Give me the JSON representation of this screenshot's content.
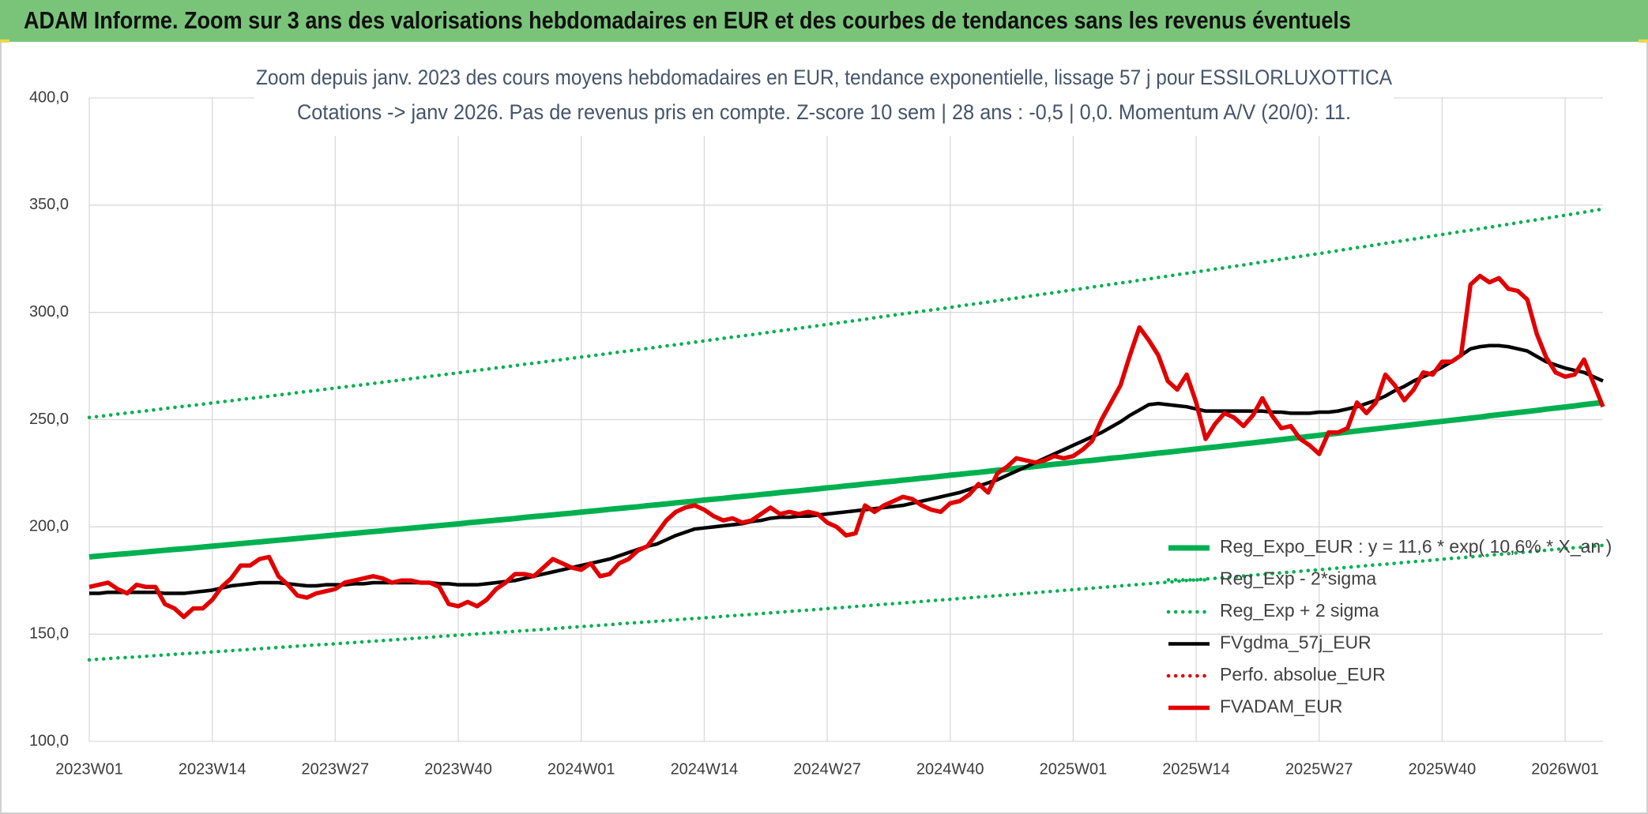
{
  "header": {
    "title": "ADAM Informe. Zoom sur 3 ans des valorisations hebdomadaires en EUR et des courbes de tendances sans les revenus éventuels"
  },
  "chart_data": {
    "type": "line",
    "title": "Zoom depuis janv. 2023 des cours moyens hebdomadaires en EUR, tendance exponentielle, lissage 57 j pour ESSILORLUXOTTICA",
    "subtitle": "Cotations -> janv 2026. Pas de revenus pris en compte. Z-score 10 sem | 28 ans : -0,5 | 0,0. Momentum A/V (20/0): 11.",
    "categories": [
      "2023W01",
      null,
      null,
      null,
      null,
      null,
      null,
      null,
      null,
      null,
      null,
      null,
      null,
      "2023W14",
      null,
      null,
      null,
      null,
      null,
      null,
      null,
      null,
      null,
      null,
      null,
      null,
      "2023W27",
      null,
      null,
      null,
      null,
      null,
      null,
      null,
      null,
      null,
      null,
      null,
      null,
      "2023W40",
      null,
      null,
      null,
      null,
      null,
      null,
      null,
      null,
      null,
      null,
      null,
      null,
      "2024W01",
      null,
      null,
      null,
      null,
      null,
      null,
      null,
      null,
      null,
      null,
      null,
      null,
      "2024W14",
      null,
      null,
      null,
      null,
      null,
      null,
      null,
      null,
      null,
      null,
      null,
      null,
      "2024W27",
      null,
      null,
      null,
      null,
      null,
      null,
      null,
      null,
      null,
      null,
      null,
      null,
      "2024W40",
      null,
      null,
      null,
      null,
      null,
      null,
      null,
      null,
      null,
      null,
      null,
      null,
      "2025W01",
      null,
      null,
      null,
      null,
      null,
      null,
      null,
      null,
      null,
      null,
      null,
      null,
      "2025W14",
      null,
      null,
      null,
      null,
      null,
      null,
      null,
      null,
      null,
      null,
      null,
      null,
      "2025W27",
      null,
      null,
      null,
      null,
      null,
      null,
      null,
      null,
      null,
      null,
      null,
      null,
      "2025W40",
      null,
      null,
      null,
      null,
      null,
      null,
      null,
      null,
      null,
      null,
      null,
      null,
      "2026W01",
      null,
      null,
      null,
      null
    ],
    "ylim": [
      100,
      400
    ],
    "yticks": [
      {
        "value": 100,
        "label": "100,0"
      },
      {
        "value": 150,
        "label": "150,0"
      },
      {
        "value": 200,
        "label": "200,0"
      },
      {
        "value": 250,
        "label": "250,0"
      },
      {
        "value": 300,
        "label": "300,0"
      },
      {
        "value": 350,
        "label": "350,0"
      },
      {
        "value": 400,
        "label": "400,0"
      }
    ],
    "grid": true,
    "legend": "lower right",
    "series": [
      {
        "name": "Reg_Expo_EUR : y = 11,6 * exp( 10,6% * X_an )",
        "color": "#00b050",
        "line_style": "solid",
        "values": [
          186.0,
          186.4,
          186.8,
          187.2,
          187.5,
          187.9,
          188.3,
          188.7,
          189.1,
          189.5,
          189.8,
          190.2,
          190.6,
          191.0,
          191.4,
          191.8,
          192.2,
          192.6,
          193.0,
          193.4,
          193.8,
          194.2,
          194.6,
          195.0,
          195.4,
          195.8,
          196.2,
          196.6,
          197.0,
          197.4,
          197.8,
          198.2,
          198.6,
          199.0,
          199.4,
          199.8,
          200.2,
          200.6,
          201.0,
          201.4,
          201.9,
          202.3,
          202.7,
          203.1,
          203.5,
          203.9,
          204.4,
          204.8,
          205.2,
          205.6,
          206.0,
          206.4,
          206.9,
          207.3,
          207.7,
          208.2,
          208.6,
          209.0,
          209.4,
          209.9,
          210.3,
          210.7,
          211.2,
          211.6,
          212.0,
          212.5,
          212.9,
          213.3,
          213.8,
          214.2,
          214.6,
          215.1,
          215.5,
          216.0,
          216.4,
          216.8,
          217.3,
          217.7,
          218.2,
          218.6,
          219.1,
          219.5,
          220.0,
          220.4,
          220.9,
          221.3,
          221.8,
          222.2,
          222.7,
          223.1,
          223.6,
          224.1,
          224.5,
          225.0,
          225.4,
          225.9,
          226.4,
          226.8,
          227.3,
          227.7,
          228.2,
          228.7,
          229.2,
          229.6,
          230.1,
          230.6,
          231.0,
          231.5,
          232.0,
          232.4,
          232.9,
          233.4,
          233.9,
          234.4,
          234.8,
          235.3,
          235.8,
          236.3,
          236.8,
          237.2,
          237.7,
          238.2,
          238.7,
          239.2,
          239.7,
          240.2,
          240.7,
          241.2,
          241.7,
          242.2,
          242.7,
          243.2,
          243.7,
          244.2,
          244.7,
          245.2,
          245.7,
          246.2,
          246.7,
          247.2,
          247.7,
          248.2,
          248.7,
          249.2,
          249.7,
          250.2,
          250.7,
          251.2,
          251.8,
          252.3,
          252.8,
          253.3,
          253.8,
          254.3,
          254.9,
          255.4,
          255.9,
          256.4,
          257.0,
          257.5,
          258.0
        ]
      },
      {
        "name": "Reg_Exp - 2*sigma",
        "color": "#00b050",
        "line_style": "dotted",
        "values": [
          138.0,
          138.3,
          138.6,
          138.9,
          139.1,
          139.4,
          139.7,
          140.0,
          140.3,
          140.6,
          140.9,
          141.1,
          141.4,
          141.7,
          142.0,
          142.3,
          142.6,
          142.9,
          143.2,
          143.5,
          143.8,
          144.1,
          144.4,
          144.7,
          145.0,
          145.2,
          145.5,
          145.8,
          146.1,
          146.4,
          146.7,
          147.0,
          147.3,
          147.6,
          147.9,
          148.2,
          148.5,
          148.9,
          149.2,
          149.5,
          149.8,
          150.1,
          150.4,
          150.7,
          151.0,
          151.3,
          151.6,
          151.9,
          152.2,
          152.5,
          152.9,
          153.2,
          153.5,
          153.8,
          154.1,
          154.4,
          154.8,
          155.1,
          155.4,
          155.7,
          156.0,
          156.3,
          156.7,
          157.0,
          157.3,
          157.6,
          157.9,
          158.3,
          158.6,
          158.9,
          159.2,
          159.6,
          159.9,
          160.2,
          160.6,
          160.9,
          161.2,
          161.5,
          161.9,
          162.2,
          162.5,
          162.9,
          163.2,
          163.5,
          163.9,
          164.2,
          164.5,
          164.9,
          165.2,
          165.6,
          165.9,
          166.2,
          166.6,
          166.9,
          167.3,
          167.6,
          167.9,
          168.3,
          168.6,
          169.0,
          169.3,
          169.7,
          170.0,
          170.4,
          170.7,
          171.1,
          171.4,
          171.8,
          172.1,
          172.5,
          172.8,
          173.2,
          173.5,
          173.9,
          174.2,
          174.6,
          175.0,
          175.3,
          175.7,
          176.0,
          176.4,
          176.7,
          177.1,
          177.5,
          177.8,
          178.2,
          178.6,
          178.9,
          179.3,
          179.7,
          180.0,
          180.4,
          180.8,
          181.1,
          181.5,
          181.9,
          182.3,
          182.6,
          183.0,
          183.4,
          183.8,
          184.1,
          184.5,
          184.9,
          185.3,
          185.6,
          186.0,
          186.4,
          186.8,
          187.2,
          187.5,
          187.9,
          188.3,
          188.7,
          189.1,
          189.5,
          189.9,
          190.3,
          190.6,
          191.0,
          191.4
        ]
      },
      {
        "name": "Reg_Exp + 2 sigma",
        "color": "#00b050",
        "line_style": "dotted",
        "values": [
          251.0,
          251.5,
          252.0,
          252.6,
          253.1,
          253.6,
          254.1,
          254.6,
          255.2,
          255.7,
          256.2,
          256.7,
          257.2,
          257.8,
          258.3,
          258.8,
          259.4,
          259.9,
          260.4,
          260.9,
          261.5,
          262.0,
          262.6,
          263.1,
          263.6,
          264.2,
          264.7,
          265.3,
          265.8,
          266.3,
          266.9,
          267.4,
          268.0,
          268.5,
          269.1,
          269.6,
          270.2,
          270.7,
          271.3,
          271.8,
          272.4,
          273.0,
          273.5,
          274.1,
          274.6,
          275.2,
          275.8,
          276.3,
          276.9,
          277.5,
          278.0,
          278.6,
          279.2,
          279.7,
          280.3,
          280.9,
          281.5,
          282.0,
          282.6,
          283.2,
          283.8,
          284.4,
          284.9,
          285.5,
          286.1,
          286.7,
          287.3,
          287.9,
          288.5,
          289.0,
          289.6,
          290.2,
          290.8,
          291.4,
          292.0,
          292.6,
          293.2,
          293.8,
          294.4,
          295.0,
          295.6,
          296.2,
          296.8,
          297.5,
          298.1,
          298.7,
          299.3,
          299.9,
          300.5,
          301.1,
          301.7,
          302.3,
          303.0,
          303.6,
          304.2,
          304.8,
          305.5,
          306.1,
          306.7,
          307.3,
          308.0,
          308.6,
          309.2,
          309.9,
          310.5,
          311.1,
          311.8,
          312.4,
          313.1,
          313.7,
          314.3,
          315.0,
          315.6,
          316.3,
          316.9,
          317.6,
          318.2,
          318.9,
          319.5,
          320.2,
          320.8,
          321.5,
          322.1,
          322.8,
          323.5,
          324.1,
          324.8,
          325.5,
          326.1,
          326.8,
          327.4,
          328.1,
          328.8,
          329.5,
          330.2,
          330.8,
          331.5,
          332.2,
          332.9,
          333.5,
          334.2,
          334.9,
          335.6,
          336.3,
          337.0,
          337.7,
          338.3,
          339.0,
          339.7,
          340.4,
          341.1,
          341.8,
          342.5,
          343.2,
          343.9,
          344.6,
          345.3,
          346.0,
          346.7,
          347.5,
          348.2
        ]
      },
      {
        "name": "FVgdma_57j_EUR",
        "color": "#000000",
        "line_style": "solid",
        "values": [
          169,
          169,
          169.5,
          169.5,
          169.5,
          169.5,
          169.5,
          169.5,
          169,
          169,
          169,
          169.5,
          170,
          170.5,
          171.5,
          172.5,
          173,
          173.5,
          174,
          174,
          174,
          173.5,
          173,
          172.5,
          172.5,
          173,
          173,
          173,
          173.5,
          173.5,
          174,
          174,
          174,
          174,
          174,
          174,
          174,
          173.5,
          173.5,
          173,
          173,
          173,
          173.5,
          174,
          174.5,
          175,
          176,
          177,
          178,
          179,
          180,
          181,
          182,
          183,
          184,
          185,
          186.5,
          188,
          189.5,
          191,
          192,
          194,
          196,
          197.5,
          199,
          199.5,
          200,
          200.5,
          201,
          201.5,
          202.5,
          203,
          204,
          204.5,
          204.5,
          205,
          205,
          205.5,
          206,
          206.5,
          207,
          207.5,
          208,
          208.5,
          209,
          209.5,
          210,
          211,
          212,
          213,
          214,
          215,
          216,
          217.5,
          219,
          220.5,
          222,
          224,
          226,
          228,
          230,
          232,
          234,
          236,
          238,
          240,
          242,
          244,
          246.5,
          249,
          252,
          254.5,
          257,
          257.5,
          257,
          256.5,
          256,
          255,
          254,
          254,
          254,
          254,
          254,
          254,
          254,
          253.5,
          253.5,
          253,
          253,
          253,
          253.5,
          253.5,
          254,
          255,
          256,
          257.5,
          259,
          261,
          263.5,
          265.5,
          268,
          270,
          272,
          274.5,
          277,
          280,
          283,
          284,
          284.5,
          284.5,
          284,
          283,
          282,
          279.5,
          277,
          275.5,
          274,
          273,
          272,
          270,
          268
        ]
      },
      {
        "name": "Perfo. absolue_EUR",
        "color": "#e00000",
        "line_style": "dotted",
        "values": [
          null,
          null,
          null,
          null,
          null,
          null,
          null,
          null,
          null,
          null,
          null,
          null,
          null,
          null,
          null,
          null,
          null,
          null,
          null,
          null,
          null,
          null,
          null,
          null,
          null,
          null,
          null,
          null,
          null,
          null,
          null,
          null,
          null,
          null,
          null,
          null,
          null,
          null,
          null,
          null,
          null,
          null,
          null,
          null,
          null,
          null,
          null,
          null,
          null,
          null,
          null,
          null,
          null,
          null,
          null,
          null,
          null,
          null,
          null,
          null,
          null,
          null,
          null,
          null,
          null,
          null,
          null,
          null,
          null,
          null,
          null,
          null,
          null,
          null,
          null,
          null,
          null,
          null,
          null,
          null,
          null,
          null,
          null,
          null,
          null,
          null,
          null,
          null,
          null,
          null,
          null,
          null,
          null,
          null,
          null,
          null,
          null,
          null,
          null,
          null,
          null,
          null,
          null,
          null,
          null,
          null,
          null,
          null,
          null,
          null,
          null,
          null,
          null,
          null,
          null,
          null,
          null,
          null,
          null,
          null,
          null,
          null,
          null,
          null,
          null,
          null,
          null,
          null,
          null,
          null,
          null,
          null,
          null,
          null,
          null,
          null,
          null,
          null,
          null,
          null,
          null,
          null,
          null,
          null,
          null,
          null,
          null,
          null,
          null,
          null,
          null,
          null,
          null,
          null,
          null,
          null,
          null,
          null,
          null,
          null,
          null
        ]
      },
      {
        "name": "FVADAM_EUR",
        "color": "#e00000",
        "line_style": "solid",
        "values": [
          172,
          173,
          174,
          171,
          169,
          173,
          172,
          172,
          164,
          162,
          158,
          162,
          162,
          166,
          172,
          176,
          182,
          182,
          185,
          186,
          177,
          173,
          168,
          167,
          169,
          170,
          171,
          174,
          175,
          176,
          177,
          176,
          174,
          175,
          175,
          174,
          174,
          172,
          164,
          163,
          165,
          163,
          166,
          171,
          174,
          178,
          178,
          177,
          181,
          185,
          183,
          181,
          180,
          183,
          177,
          178,
          183,
          185,
          189,
          191,
          197,
          203,
          207,
          209,
          210,
          208,
          205,
          203,
          204,
          202,
          203,
          206,
          209,
          206,
          207,
          206,
          207,
          206,
          202,
          200,
          196,
          197,
          210,
          207,
          210,
          212,
          214,
          213,
          210,
          208,
          207,
          211,
          212,
          215,
          220,
          216,
          225,
          228,
          232,
          231,
          230,
          231,
          233,
          232,
          233,
          236,
          240,
          250,
          258,
          266,
          280,
          293,
          287,
          280,
          268,
          264,
          271,
          258,
          241,
          248,
          253,
          251,
          247,
          252,
          260,
          252,
          246,
          247,
          241,
          238,
          234,
          244,
          244,
          246,
          258,
          253,
          258,
          271,
          266,
          259,
          264,
          272,
          271,
          277,
          277,
          280,
          313,
          317,
          314,
          316,
          311,
          310,
          306,
          290,
          279,
          272,
          270,
          271,
          278,
          267,
          256
        ]
      }
    ]
  }
}
